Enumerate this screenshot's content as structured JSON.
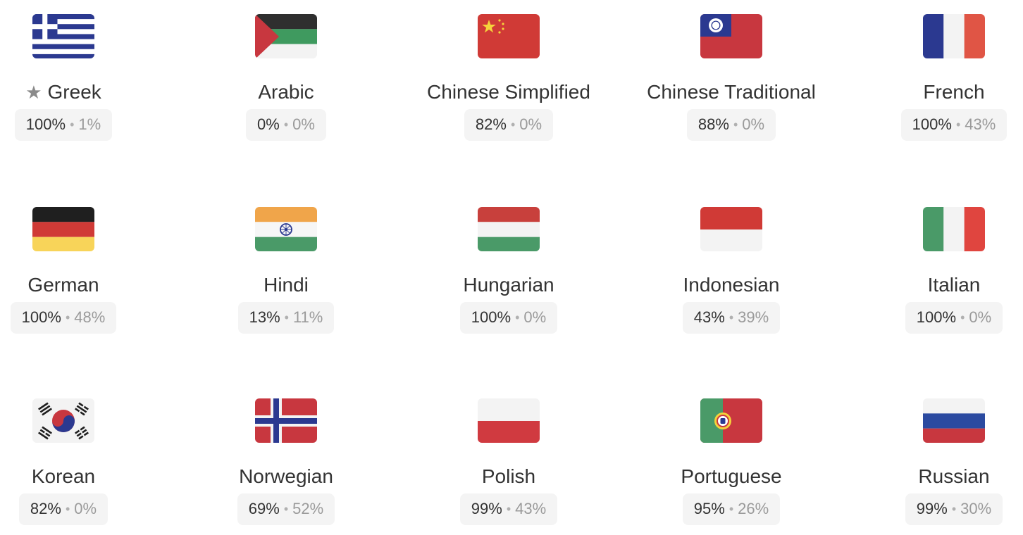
{
  "languages": [
    {
      "name": "Greek",
      "translated": "100%",
      "reviewed": "1%",
      "starred": true,
      "flag": "greece-flag"
    },
    {
      "name": "Arabic",
      "translated": "0%",
      "reviewed": "0%",
      "starred": false,
      "flag": "palestine-flag"
    },
    {
      "name": "Chinese Simplified",
      "translated": "82%",
      "reviewed": "0%",
      "starred": false,
      "flag": "china-flag"
    },
    {
      "name": "Chinese Traditional",
      "translated": "88%",
      "reviewed": "0%",
      "starred": false,
      "flag": "taiwan-flag"
    },
    {
      "name": "French",
      "translated": "100%",
      "reviewed": "43%",
      "starred": false,
      "flag": "france-flag"
    },
    {
      "name": "German",
      "translated": "100%",
      "reviewed": "48%",
      "starred": false,
      "flag": "germany-flag"
    },
    {
      "name": "Hindi",
      "translated": "13%",
      "reviewed": "11%",
      "starred": false,
      "flag": "india-flag"
    },
    {
      "name": "Hungarian",
      "translated": "100%",
      "reviewed": "0%",
      "starred": false,
      "flag": "hungary-flag"
    },
    {
      "name": "Indonesian",
      "translated": "43%",
      "reviewed": "39%",
      "starred": false,
      "flag": "indonesia-flag"
    },
    {
      "name": "Italian",
      "translated": "100%",
      "reviewed": "0%",
      "starred": false,
      "flag": "italy-flag"
    },
    {
      "name": "Korean",
      "translated": "82%",
      "reviewed": "0%",
      "starred": false,
      "flag": "south-korea-flag"
    },
    {
      "name": "Norwegian",
      "translated": "69%",
      "reviewed": "52%",
      "starred": false,
      "flag": "norway-flag"
    },
    {
      "name": "Polish",
      "translated": "99%",
      "reviewed": "43%",
      "starred": false,
      "flag": "poland-flag"
    },
    {
      "name": "Portuguese",
      "translated": "95%",
      "reviewed": "26%",
      "starred": false,
      "flag": "portugal-flag"
    },
    {
      "name": "Russian",
      "translated": "99%",
      "reviewed": "30%",
      "starred": false,
      "flag": "russia-flag"
    }
  ],
  "separator": "•",
  "star_icon": "★",
  "colors": {
    "text": "#333333",
    "muted": "#9a9a9a",
    "badge_bg": "#f4f4f4",
    "star": "#8a8a8a"
  }
}
